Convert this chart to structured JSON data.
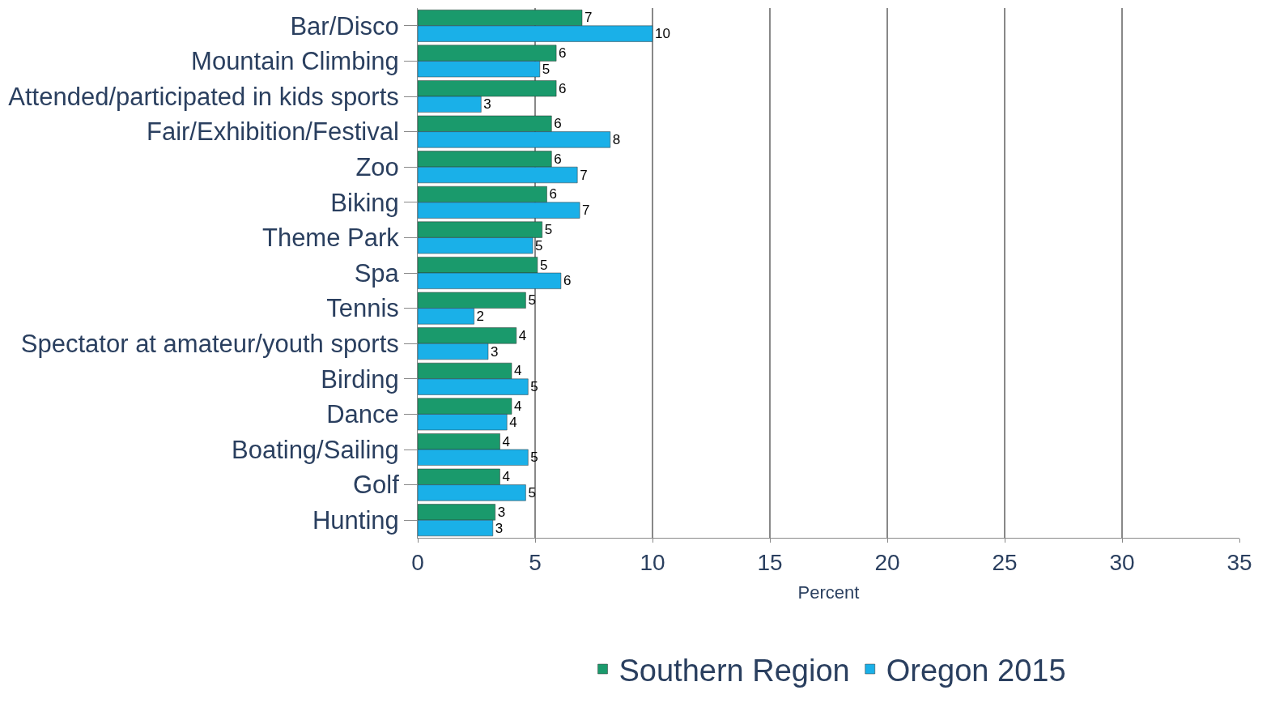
{
  "chart_data": {
    "type": "bar",
    "orientation": "horizontal",
    "xlabel": "Percent",
    "categories": [
      "Bar/Disco",
      "Mountain Climbing",
      "Attended/participated in kids sports",
      "Fair/Exhibition/Festival",
      "Zoo",
      "Biking",
      "Theme Park",
      "Spa",
      "Tennis",
      "Spectator at amateur/youth sports",
      "Birding",
      "Dance",
      "Boating/Sailing",
      "Golf",
      "Hunting"
    ],
    "series": [
      {
        "name": "Southern Region",
        "color": "#1a9a6c",
        "values": [
          7.0,
          5.9,
          5.9,
          5.7,
          5.7,
          5.5,
          5.3,
          5.1,
          4.6,
          4.2,
          4.0,
          4.0,
          3.5,
          3.5,
          3.3
        ],
        "value_labels": [
          "7",
          "6",
          "6",
          "6",
          "6",
          "6",
          "5",
          "5",
          "5",
          "4",
          "4",
          "4",
          "4",
          "4",
          "3"
        ]
      },
      {
        "name": "Oregon 2015",
        "color": "#1ab0e8",
        "values": [
          10.0,
          5.2,
          2.7,
          8.2,
          6.8,
          6.9,
          4.9,
          6.1,
          2.4,
          3.0,
          4.7,
          3.8,
          4.7,
          4.6,
          3.2
        ],
        "value_labels": [
          "10",
          "5",
          "3",
          "8",
          "7",
          "7",
          "5",
          "6",
          "2",
          "3",
          "5",
          "4",
          "5",
          "5",
          "3"
        ]
      }
    ],
    "xlim": [
      0,
      35
    ],
    "xticks": [
      0,
      5,
      10,
      15,
      20,
      25,
      30,
      35
    ],
    "grid": "x",
    "legend": "bottom"
  }
}
